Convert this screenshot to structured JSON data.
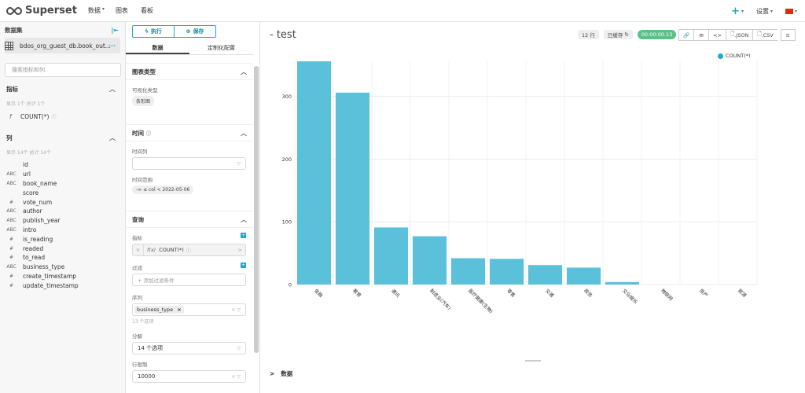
{
  "topbar": {
    "brand": "Superset",
    "nav": [
      "数据",
      "图表",
      "看板"
    ],
    "settings": "设置"
  },
  "sidebar": {
    "dataset_label": "数据集",
    "dataset_name": "bdos_org_guest_db.book_out...",
    "search_placeholder": "搜索指标和列",
    "metrics_label": "指标",
    "metrics_hint": "显示 1个 总计 1个",
    "metrics": [
      {
        "type": "f",
        "name": "COUNT(*)"
      }
    ],
    "columns_label": "列",
    "columns_hint": "显示 14个 总计 14个",
    "columns": [
      {
        "type": "",
        "name": "id"
      },
      {
        "type": "ABC",
        "name": "url"
      },
      {
        "type": "ABC",
        "name": "book_name"
      },
      {
        "type": "",
        "name": "score"
      },
      {
        "type": "#",
        "name": "vote_num"
      },
      {
        "type": "ABC",
        "name": "author"
      },
      {
        "type": "ABC",
        "name": "publish_year"
      },
      {
        "type": "ABC",
        "name": "intro"
      },
      {
        "type": "#",
        "name": "is_reading"
      },
      {
        "type": "#",
        "name": "readed"
      },
      {
        "type": "#",
        "name": "to_read"
      },
      {
        "type": "ABC",
        "name": "business_type"
      },
      {
        "type": "#",
        "name": "create_timestamp"
      },
      {
        "type": "#",
        "name": "update_timestamp"
      }
    ]
  },
  "panel": {
    "run_label": "执行",
    "save_label": "保存",
    "tab_data": "数据",
    "tab_custom": "定制化配置",
    "chart_type_section": "图表类型",
    "viz_type_label": "可视化类型",
    "viz_type_value": "条形图",
    "time_section": "时间",
    "time_column_label": "时间列",
    "time_range_label": "时间范围",
    "time_range_value": "-∞ ≤ col < 2022-05-06",
    "query_section": "查询",
    "metrics_label": "指标",
    "metric_value": "COUNT(*)",
    "metric_prefix": "f(x)",
    "filters_label": "过滤",
    "filters_placeholder": "+ 添加过滤条件",
    "series_label": "序列",
    "series_value": "business_type",
    "series_hint": "13 个选项",
    "breakdown_label": "分解",
    "breakdown_value": "14 个选项",
    "row_limit_label": "行限制",
    "row_limit_value": "10000"
  },
  "chart_header": {
    "title": "- test",
    "rows": "12 行",
    "cached": "已缓存",
    "duration": "00:00:00.13",
    "json_label": ".JSON",
    "csv_label": ".CSV"
  },
  "chart_data": {
    "type": "bar",
    "categories": [
      "金融",
      "教育",
      "通讯",
      "制造业(汽车)",
      "医疗健康(生物)",
      "零售",
      "交通",
      "政务",
      "文化娱乐",
      "物联网",
      "房产",
      "能源"
    ],
    "series": [
      {
        "name": "COUNT(*)",
        "values": [
          356,
          306,
          91,
          77,
          42,
          41,
          31,
          27,
          4,
          0,
          0,
          0
        ]
      }
    ],
    "yticks": [
      0,
      100,
      200,
      300
    ],
    "ylim": [
      0,
      356
    ],
    "color": "#5bc0d9",
    "legend": "top-right"
  },
  "bottom": {
    "data_label": "数据"
  }
}
